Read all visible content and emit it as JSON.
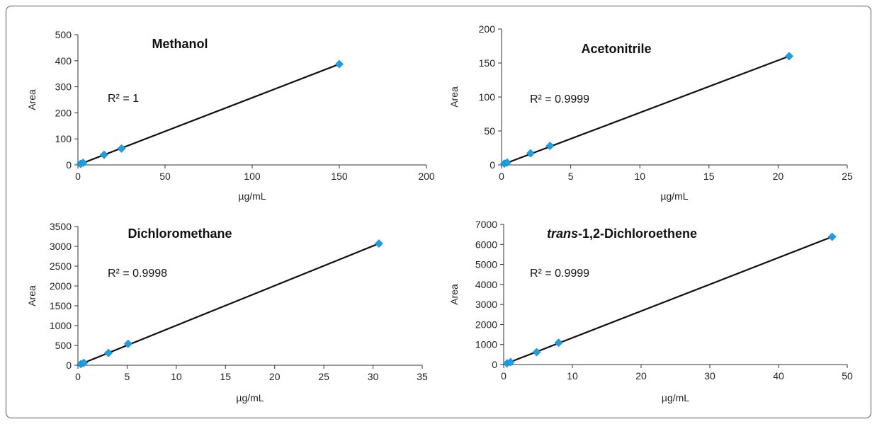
{
  "chart_data": [
    {
      "type": "scatter",
      "title": "Methanol",
      "xlabel": "µg/mL",
      "ylabel": "Area",
      "annotation": "R² = 1",
      "xlim": [
        0,
        200
      ],
      "ylim": [
        0,
        500
      ],
      "xticks": [
        0,
        50,
        100,
        150,
        200
      ],
      "yticks": [
        0,
        100,
        200,
        300,
        400,
        500
      ],
      "x": [
        1.5,
        3,
        15,
        25,
        150
      ],
      "y": [
        4,
        8,
        39,
        63,
        387
      ],
      "trendline": {
        "x": [
          0,
          150
        ],
        "y": [
          0,
          387
        ]
      },
      "marker_color": "#1aa0e6",
      "line_color": "#111111"
    },
    {
      "type": "scatter",
      "title": "Acetonitrile",
      "xlabel": "µg/mL",
      "ylabel": "Area",
      "annotation": "R² = 0.9999",
      "xlim": [
        0,
        25
      ],
      "ylim": [
        0,
        200
      ],
      "xticks": [
        0,
        5,
        10,
        15,
        20,
        25
      ],
      "yticks": [
        0,
        50,
        100,
        150,
        200
      ],
      "x": [
        0.2,
        0.4,
        2.1,
        3.5,
        20.8
      ],
      "y": [
        2,
        3.5,
        17,
        28,
        160
      ],
      "trendline": {
        "x": [
          0,
          20.8
        ],
        "y": [
          0,
          160
        ]
      },
      "marker_color": "#1aa0e6",
      "line_color": "#111111"
    },
    {
      "type": "scatter",
      "title": "Dichloromethane",
      "xlabel": "µg/mL",
      "ylabel": "Area",
      "annotation": "R² = 0.9998",
      "xlim": [
        0,
        35
      ],
      "ylim": [
        0,
        3500
      ],
      "xticks": [
        0,
        5,
        10,
        15,
        20,
        25,
        30,
        35
      ],
      "yticks": [
        0,
        500,
        1000,
        1500,
        2000,
        2500,
        3000,
        3500
      ],
      "x": [
        0.3,
        0.6,
        3.1,
        5.1,
        30.6
      ],
      "y": [
        30,
        60,
        310,
        540,
        3070
      ],
      "trendline": {
        "x": [
          0,
          30.6
        ],
        "y": [
          0,
          3070
        ]
      },
      "marker_color": "#1aa0e6",
      "line_color": "#111111"
    },
    {
      "type": "scatter",
      "title_italic": "trans",
      "title_rest": "-1,2-Dichloroethene",
      "xlabel": "µg/mL",
      "ylabel": "Area",
      "annotation": "R² = 0.9999",
      "xlim": [
        0,
        50
      ],
      "ylim": [
        0,
        7000
      ],
      "xticks": [
        0,
        10,
        20,
        30,
        40,
        50
      ],
      "yticks": [
        0,
        1000,
        2000,
        3000,
        4000,
        5000,
        6000,
        7000
      ],
      "x": [
        0.5,
        1,
        4.8,
        8,
        47.8
      ],
      "y": [
        60,
        120,
        620,
        1090,
        6380
      ],
      "trendline": {
        "x": [
          0,
          47.8
        ],
        "y": [
          0,
          6380
        ]
      },
      "marker_color": "#1aa0e6",
      "line_color": "#111111"
    }
  ]
}
